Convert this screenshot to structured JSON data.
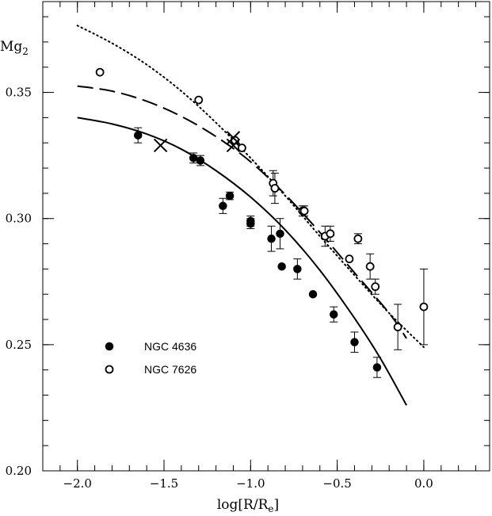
{
  "chart_data": {
    "type": "scatter",
    "xlim": [
      -2.2,
      0.38
    ],
    "ylim": [
      0.2,
      0.386
    ],
    "x_ticks": [
      -2.0,
      -1.5,
      -1.0,
      -0.5,
      0.0
    ],
    "x_tick_labels": [
      "−2.0",
      "−1.5",
      "−1.0",
      "−0.5",
      "0.0"
    ],
    "y_ticks": [
      0.2,
      0.25,
      0.3,
      0.35
    ],
    "y_tick_labels": [
      "0.20",
      "0.25",
      "0.30",
      "0.35"
    ],
    "y_minor_step": 0.01,
    "x_minor_step": 0.1,
    "xlabel_main": "log[R/R",
    "xlabel_sub": "e",
    "xlabel_close": "]",
    "ylabel_main": "Mg",
    "ylabel_sub": "2",
    "grid": false,
    "legend_position": "lower-left",
    "series": [
      {
        "name": "NGC 4636",
        "marker": "filled-circle",
        "points": [
          {
            "x": -1.65,
            "y": 0.333,
            "err": 0.003
          },
          {
            "x": -1.33,
            "y": 0.324,
            "err": 0.002
          },
          {
            "x": -1.29,
            "y": 0.323,
            "err": 0.002
          },
          {
            "x": -1.16,
            "y": 0.305,
            "err": 0.003
          },
          {
            "x": -1.12,
            "y": 0.309,
            "err": 0.0015
          },
          {
            "x": -1.0,
            "y": 0.299,
            "err": 0.002
          },
          {
            "x": -1.0,
            "y": 0.298,
            "err": 0.002
          },
          {
            "x": -0.88,
            "y": 0.292,
            "err": 0.005
          },
          {
            "x": -0.83,
            "y": 0.294,
            "err": 0.006
          },
          {
            "x": -0.82,
            "y": 0.281,
            "err": 0.0
          },
          {
            "x": -0.73,
            "y": 0.28,
            "err": 0.004
          },
          {
            "x": -0.64,
            "y": 0.27,
            "err": 0.0
          },
          {
            "x": -0.52,
            "y": 0.262,
            "err": 0.003
          },
          {
            "x": -0.4,
            "y": 0.251,
            "err": 0.004
          },
          {
            "x": -0.27,
            "y": 0.241,
            "err": 0.004
          }
        ]
      },
      {
        "name": "NGC 7626",
        "marker": "open-circle",
        "points": [
          {
            "x": -1.87,
            "y": 0.358,
            "err": 0.0
          },
          {
            "x": -1.3,
            "y": 0.347,
            "err": 0.0
          },
          {
            "x": -1.09,
            "y": 0.331,
            "err": 0.0
          },
          {
            "x": -1.05,
            "y": 0.328,
            "err": 0.0
          },
          {
            "x": -0.87,
            "y": 0.314,
            "err": 0.005
          },
          {
            "x": -0.86,
            "y": 0.312,
            "err": 0.006
          },
          {
            "x": -0.7,
            "y": 0.303,
            "err": 0.002
          },
          {
            "x": -0.69,
            "y": 0.303,
            "err": 0.002
          },
          {
            "x": -0.57,
            "y": 0.293,
            "err": 0.004
          },
          {
            "x": -0.54,
            "y": 0.294,
            "err": 0.003
          },
          {
            "x": -0.43,
            "y": 0.284,
            "err": 0.0
          },
          {
            "x": -0.38,
            "y": 0.292,
            "err": 0.002
          },
          {
            "x": -0.31,
            "y": 0.281,
            "err": 0.005
          },
          {
            "x": -0.28,
            "y": 0.273,
            "err": 0.003
          },
          {
            "x": -0.15,
            "y": 0.257,
            "err": 0.009
          },
          {
            "x": 0.0,
            "y": 0.265,
            "err": 0.015
          }
        ]
      }
    ],
    "crosses": [
      {
        "x": -1.52,
        "y": 0.329
      },
      {
        "x": -1.1,
        "y": 0.332
      },
      {
        "x": -1.1,
        "y": 0.329
      }
    ],
    "curves": [
      {
        "style": "solid",
        "points": [
          [
            -2.0,
            0.34
          ],
          [
            -1.8,
            0.3375
          ],
          [
            -1.6,
            0.3335
          ],
          [
            -1.4,
            0.3275
          ],
          [
            -1.2,
            0.319
          ],
          [
            -1.0,
            0.3085
          ],
          [
            -0.8,
            0.2955
          ],
          [
            -0.6,
            0.2795
          ],
          [
            -0.4,
            0.2605
          ],
          [
            -0.25,
            0.2445
          ],
          [
            -0.1,
            0.226
          ]
        ]
      },
      {
        "style": "dashed",
        "points": [
          [
            -2.0,
            0.3525
          ],
          [
            -1.8,
            0.3505
          ],
          [
            -1.6,
            0.3465
          ],
          [
            -1.4,
            0.3405
          ],
          [
            -1.2,
            0.3325
          ],
          [
            -1.0,
            0.3225
          ],
          [
            -0.8,
            0.3095
          ],
          [
            -0.6,
            0.2945
          ],
          [
            -0.4,
            0.2785
          ],
          [
            -0.2,
            0.2625
          ],
          [
            -0.1,
            0.2525
          ]
        ]
      },
      {
        "style": "dotted",
        "points": [
          [
            -2.0,
            0.3765
          ],
          [
            -1.8,
            0.3695
          ],
          [
            -1.6,
            0.361
          ],
          [
            -1.4,
            0.3505
          ],
          [
            -1.2,
            0.338
          ],
          [
            -1.0,
            0.324
          ],
          [
            -0.8,
            0.309
          ],
          [
            -0.6,
            0.293
          ],
          [
            -0.4,
            0.2775
          ],
          [
            -0.2,
            0.2625
          ],
          [
            0.0,
            0.249
          ]
        ]
      }
    ]
  }
}
